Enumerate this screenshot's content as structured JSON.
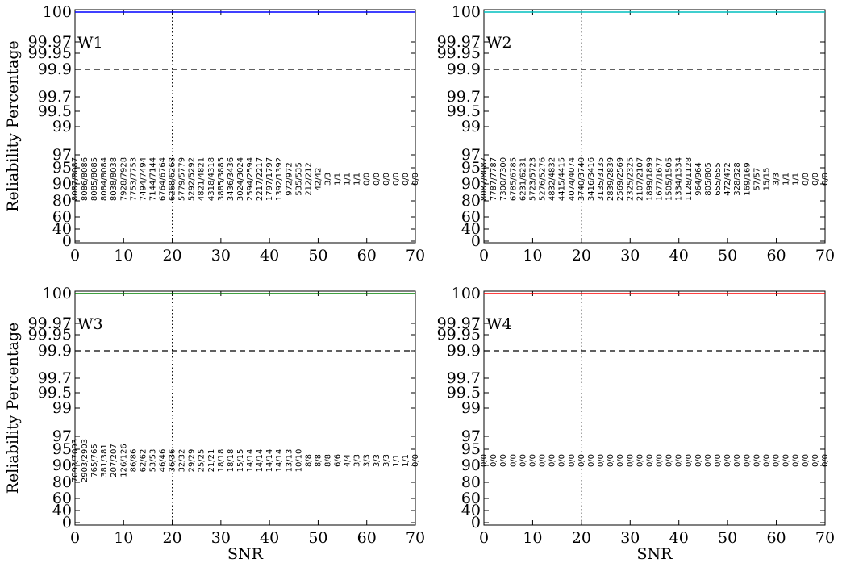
{
  "chart_data": [
    {
      "type": "line",
      "panel_label": "W1",
      "xlabel": "",
      "ylabel": "Reliability Percentage",
      "color": "#0000ff",
      "xlim": [
        0,
        70
      ],
      "x_ticks": [
        "0",
        "10",
        "20",
        "30",
        "40",
        "50",
        "60",
        "70"
      ],
      "y_ticks": [
        "0",
        "40",
        "60",
        "80",
        "90",
        "95",
        "97",
        "99",
        "99.5",
        "99.7",
        "99.9",
        "99.95",
        "99.97",
        "100"
      ],
      "reference_line": 99.9,
      "vline_x": 20,
      "series": [
        {
          "x": [
            0,
            70
          ],
          "y": [
            100,
            100
          ]
        }
      ],
      "counts_x": [
        0,
        2,
        4,
        6,
        8,
        10,
        12,
        14,
        16,
        18,
        20,
        22,
        24,
        26,
        28,
        30,
        32,
        34,
        36,
        38,
        40,
        42,
        44,
        46,
        48,
        50,
        52,
        54,
        56,
        58,
        60,
        62,
        64,
        66,
        68,
        70
      ],
      "counts": [
        "8087/8087",
        "8086/8086",
        "8085/8085",
        "8084/8084",
        "8038/8038",
        "7928/7928",
        "7753/7753",
        "7494/7494",
        "7144/7144",
        "6764/6764",
        "6268/6268",
        "5779/5779",
        "5292/5292",
        "4821/4821",
        "4318/4318",
        "3885/3885",
        "3436/3436",
        "3024/3024",
        "2594/2594",
        "2217/2217",
        "1797/1797",
        "1392/1392",
        "972/972",
        "535/535",
        "212/212",
        "42/42",
        "3/3",
        "1/1",
        "1/1",
        "1/1",
        "0/0",
        "0/0",
        "0/0",
        "0/0",
        "0/0",
        "0/0"
      ]
    },
    {
      "type": "line",
      "panel_label": "W2",
      "xlabel": "",
      "ylabel": "",
      "color": "#00bfbf",
      "xlim": [
        0,
        70
      ],
      "x_ticks": [
        "0",
        "10",
        "20",
        "30",
        "40",
        "50",
        "60",
        "70"
      ],
      "y_ticks": [
        "0",
        "40",
        "60",
        "80",
        "90",
        "95",
        "97",
        "99",
        "99.5",
        "99.7",
        "99.9",
        "99.95",
        "99.97",
        "100"
      ],
      "reference_line": 99.9,
      "vline_x": 20,
      "series": [
        {
          "x": [
            0,
            70
          ],
          "y": [
            100,
            100
          ]
        }
      ],
      "counts_x": [
        0,
        2,
        4,
        6,
        8,
        10,
        12,
        14,
        16,
        18,
        20,
        22,
        24,
        26,
        28,
        30,
        32,
        34,
        36,
        38,
        40,
        42,
        44,
        46,
        48,
        50,
        52,
        54,
        56,
        58,
        60,
        62,
        64,
        66,
        68,
        70
      ],
      "counts": [
        "8087/8087",
        "7787/7787",
        "7300/7300",
        "6785/6785",
        "6231/6231",
        "5723/5723",
        "5276/5276",
        "4832/4832",
        "4415/4415",
        "4074/4074",
        "3740/3740",
        "3416/3416",
        "3135/3135",
        "2839/2839",
        "2569/2569",
        "2325/2325",
        "2107/2107",
        "1899/1899",
        "1677/1677",
        "1505/1505",
        "1334/1334",
        "1128/1128",
        "964/964",
        "805/805",
        "655/655",
        "472/472",
        "328/328",
        "169/169",
        "57/57",
        "15/15",
        "3/3",
        "1/1",
        "1/1",
        "0/0",
        "0/0",
        "0/0"
      ]
    },
    {
      "type": "line",
      "panel_label": "W3",
      "xlabel": "SNR",
      "ylabel": "Reliability Percentage",
      "color": "#008000",
      "xlim": [
        0,
        70
      ],
      "x_ticks": [
        "0",
        "10",
        "20",
        "30",
        "40",
        "50",
        "60",
        "70"
      ],
      "y_ticks": [
        "0",
        "40",
        "60",
        "80",
        "90",
        "95",
        "97",
        "99",
        "99.5",
        "99.7",
        "99.9",
        "99.95",
        "99.97",
        "100"
      ],
      "reference_line": 99.9,
      "vline_x": 20,
      "series": [
        {
          "x": [
            0,
            70
          ],
          "y": [
            100,
            100
          ]
        }
      ],
      "counts_x": [
        0,
        2,
        4,
        6,
        8,
        10,
        12,
        14,
        16,
        18,
        20,
        22,
        24,
        26,
        28,
        30,
        32,
        34,
        36,
        38,
        40,
        42,
        44,
        46,
        48,
        50,
        52,
        54,
        56,
        58,
        60,
        62,
        64,
        66,
        68,
        70
      ],
      "counts": [
        "7093/7093",
        "2903/2903",
        "765/765",
        "381/381",
        "207/207",
        "126/126",
        "86/86",
        "62/62",
        "53/53",
        "46/46",
        "36/36",
        "32/32",
        "29/29",
        "25/25",
        "21/21",
        "18/18",
        "18/18",
        "15/15",
        "14/14",
        "14/14",
        "14/14",
        "14/14",
        "13/13",
        "10/10",
        "8/8",
        "8/8",
        "8/8",
        "6/6",
        "4/4",
        "3/3",
        "3/3",
        "3/3",
        "3/3",
        "1/1",
        "1/1",
        "0/0"
      ]
    },
    {
      "type": "line",
      "panel_label": "W4",
      "xlabel": "SNR",
      "ylabel": "",
      "color": "#ff0000",
      "xlim": [
        0,
        70
      ],
      "x_ticks": [
        "0",
        "10",
        "20",
        "30",
        "40",
        "50",
        "60",
        "70"
      ],
      "y_ticks": [
        "0",
        "40",
        "60",
        "80",
        "90",
        "95",
        "97",
        "99",
        "99.5",
        "99.7",
        "99.9",
        "99.95",
        "99.97",
        "100"
      ],
      "reference_line": 99.9,
      "vline_x": 20,
      "series": [
        {
          "x": [
            0,
            70
          ],
          "y": [
            100,
            100
          ]
        }
      ],
      "counts_x": [
        0,
        2,
        4,
        6,
        8,
        10,
        12,
        14,
        16,
        18,
        20,
        22,
        24,
        26,
        28,
        30,
        32,
        34,
        36,
        38,
        40,
        42,
        44,
        46,
        48,
        50,
        52,
        54,
        56,
        58,
        60,
        62,
        64,
        66,
        68,
        70
      ],
      "counts": [
        "0/0",
        "0/0",
        "0/0",
        "0/0",
        "0/0",
        "0/0",
        "0/0",
        "0/0",
        "0/0",
        "0/0",
        "0/0",
        "0/0",
        "0/0",
        "0/0",
        "0/0",
        "0/0",
        "0/0",
        "0/0",
        "0/0",
        "0/0",
        "0/0",
        "0/0",
        "0/0",
        "0/0",
        "0/0",
        "0/0",
        "0/0",
        "0/0",
        "0/0",
        "0/0",
        "0/0",
        "0/0",
        "0/0",
        "0/0",
        "0/0",
        "0/0"
      ]
    }
  ]
}
